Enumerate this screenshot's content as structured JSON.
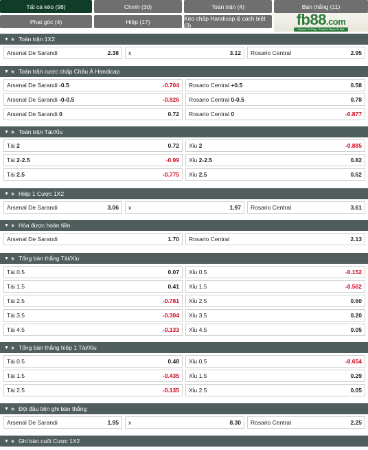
{
  "tabs": [
    {
      "label": "Tất cả kèo (98)",
      "active": true
    },
    {
      "label": "Chính (30)"
    },
    {
      "label": "Toàn trận (4)"
    },
    {
      "label": "Bàn thắng (11)"
    },
    {
      "label": "Phạt góc (4)"
    },
    {
      "label": "Hiệp (17)"
    },
    {
      "label": "Kèo chấp Handicap & cách biệt (3)"
    }
  ],
  "logo": {
    "brand_main": "fb88",
    "brand_suffix": ".com",
    "slogan": "Games To Play · Trusted Place To Bet"
  },
  "sections": [
    {
      "title": "Toàn trận 1X2",
      "layout": "three",
      "rows": [
        [
          {
            "name": "Arsenal De Sarandi",
            "odd": "2.38"
          },
          {
            "name": "x",
            "odd": "3.12"
          },
          {
            "name": "Rosario Central",
            "odd": "2.95"
          }
        ]
      ]
    },
    {
      "title": "Toàn trận cược chấp Châu Á Handicap",
      "layout": "two",
      "rows": [
        [
          {
            "name": "Arsenal De Sarandi",
            "line": "-0.5",
            "odd": "-0.704"
          },
          {
            "name": "Rosario Central",
            "line": "+0.5",
            "odd": "0.58"
          }
        ],
        [
          {
            "name": "Arsenal De Sarandi",
            "line": "-0-0.5",
            "odd": "-0.926"
          },
          {
            "name": "Rosario Central",
            "line": "0-0.5",
            "odd": "0.78"
          }
        ],
        [
          {
            "name": "Arsenal De Sarandi",
            "line": "0",
            "odd": "0.72"
          },
          {
            "name": "Rosario Central",
            "line": "0",
            "odd": "-0.877"
          }
        ]
      ]
    },
    {
      "title": "Toàn trận Tài/Xỉu",
      "layout": "two",
      "rows": [
        [
          {
            "name": "Tài",
            "line": "2",
            "odd": "0.72"
          },
          {
            "name": "Xỉu",
            "line": "2",
            "odd": "-0.885"
          }
        ],
        [
          {
            "name": "Tài",
            "line": "2-2.5",
            "odd": "-0.99"
          },
          {
            "name": "Xỉu",
            "line": "2-2.5",
            "odd": "0.82"
          }
        ],
        [
          {
            "name": "Tài",
            "line": "2.5",
            "odd": "-0.775"
          },
          {
            "name": "Xỉu",
            "line": "2.5",
            "odd": "0.62"
          }
        ]
      ]
    },
    {
      "title": "Hiệp 1 Cược 1X2",
      "layout": "three",
      "rows": [
        [
          {
            "name": "Arsenal De Sarandi",
            "odd": "3.06"
          },
          {
            "name": "x",
            "odd": "1.97"
          },
          {
            "name": "Rosario Central",
            "odd": "3.61"
          }
        ]
      ]
    },
    {
      "title": "Hòa được hoàn tiền",
      "layout": "two",
      "rows": [
        [
          {
            "name": "Arsenal De Sarandi",
            "odd": "1.70"
          },
          {
            "name": "Rosario Central",
            "odd": "2.13"
          }
        ]
      ]
    },
    {
      "title": "Tổng bàn thắng Tài/Xỉu",
      "layout": "two",
      "rows": [
        [
          {
            "name": "Tài 0.5",
            "odd": "0.07"
          },
          {
            "name": "Xỉu 0.5",
            "odd": "-0.152"
          }
        ],
        [
          {
            "name": "Tài 1.5",
            "odd": "0.41"
          },
          {
            "name": "Xỉu 1.5",
            "odd": "-0.562"
          }
        ],
        [
          {
            "name": "Tài 2.5",
            "odd": "-0.781"
          },
          {
            "name": "Xỉu 2.5",
            "odd": "0.60"
          }
        ],
        [
          {
            "name": "Tài 3.5",
            "odd": "-0.304"
          },
          {
            "name": "Xỉu 3.5",
            "odd": "0.20"
          }
        ],
        [
          {
            "name": "Tài 4.5",
            "odd": "-0.133"
          },
          {
            "name": "Xỉu 4.5",
            "odd": "0.05"
          }
        ]
      ]
    },
    {
      "title": "Tổng bàn thắng hiệp 1 Tài/Xỉu",
      "layout": "two",
      "rows": [
        [
          {
            "name": "Tài 0.5",
            "odd": "0.48"
          },
          {
            "name": "Xỉu 0.5",
            "odd": "-0.654"
          }
        ],
        [
          {
            "name": "Tài 1.5",
            "odd": "-0.435"
          },
          {
            "name": "Xỉu 1.5",
            "odd": "0.29"
          }
        ],
        [
          {
            "name": "Tài 2.5",
            "odd": "-0.135"
          },
          {
            "name": "Xỉu 2.5",
            "odd": "0.05"
          }
        ]
      ]
    },
    {
      "title": "Đội đầu tiên ghi bàn thắng",
      "layout": "three",
      "rows": [
        [
          {
            "name": "Arsenal De Sarandi",
            "odd": "1.95"
          },
          {
            "name": "x",
            "odd": "8.30"
          },
          {
            "name": "Rosario Central",
            "odd": "2.25"
          }
        ]
      ]
    },
    {
      "title": "Ghi bàn cuối Cược 1X2",
      "layout": "three",
      "rows": []
    }
  ],
  "colors": {
    "header_bg": "#4f5d5c",
    "active_tab": "#0f3d27",
    "tab_bg": "#6f6f6f",
    "negative_odd": "#d0021b"
  }
}
